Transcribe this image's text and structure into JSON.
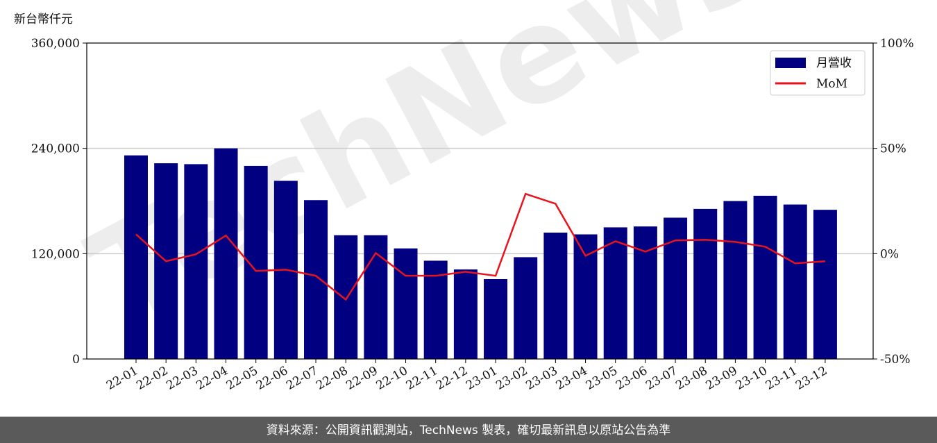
{
  "chart_data": {
    "type": "bar-line",
    "y_label": "新台幣仟元",
    "watermark": "TechNews",
    "footer": "資料來源：公開資訊觀測站，TechNews 製表，確切最新訊息以原站公告為準",
    "categories": [
      "22-01",
      "22-02",
      "22-03",
      "22-04",
      "22-05",
      "22-06",
      "22-07",
      "22-08",
      "22-09",
      "22-10",
      "22-11",
      "22-12",
      "23-01",
      "23-02",
      "23-03",
      "23-04",
      "23-05",
      "23-06",
      "23-07",
      "23-08",
      "23-09",
      "23-10",
      "23-11",
      "23-12"
    ],
    "series": [
      {
        "name": "月營收",
        "color": "#000080",
        "type": "bar",
        "values": [
          232000,
          223000,
          222000,
          240000,
          220000,
          203000,
          181000,
          141000,
          141000,
          126000,
          112000,
          102000,
          91000,
          116000,
          144000,
          142000,
          150000,
          151000,
          161000,
          171000,
          180000,
          186000,
          176000,
          170000
        ]
      },
      {
        "name": "MoM",
        "color": "#e8131b",
        "type": "line",
        "axis": "y2",
        "values": [
          9.2,
          -3.6,
          -0.3,
          8.6,
          -8.2,
          -7.6,
          -10.5,
          -21.8,
          0.3,
          -10.5,
          -10.5,
          -8.6,
          -10.5,
          28.4,
          23.7,
          -1.0,
          5.9,
          1.0,
          6.3,
          6.6,
          5.6,
          3.3,
          -4.6,
          -3.6
        ]
      }
    ],
    "ylim": [
      0,
      360000
    ],
    "yticks": [
      0,
      {
        "value": 120000,
        "label": "120,000"
      },
      {
        "value": 240000,
        "label": "240,000"
      },
      {
        "value": 360000,
        "label": "360,000"
      }
    ],
    "y2lim": [
      -50,
      100
    ],
    "y2ticks": [
      {
        "value": -50,
        "label": "-50%"
      },
      {
        "value": 0,
        "label": "0%"
      },
      {
        "value": 50,
        "label": "50%"
      },
      {
        "value": 100,
        "label": "100%"
      }
    ],
    "grid": true,
    "legend": "upper right"
  }
}
